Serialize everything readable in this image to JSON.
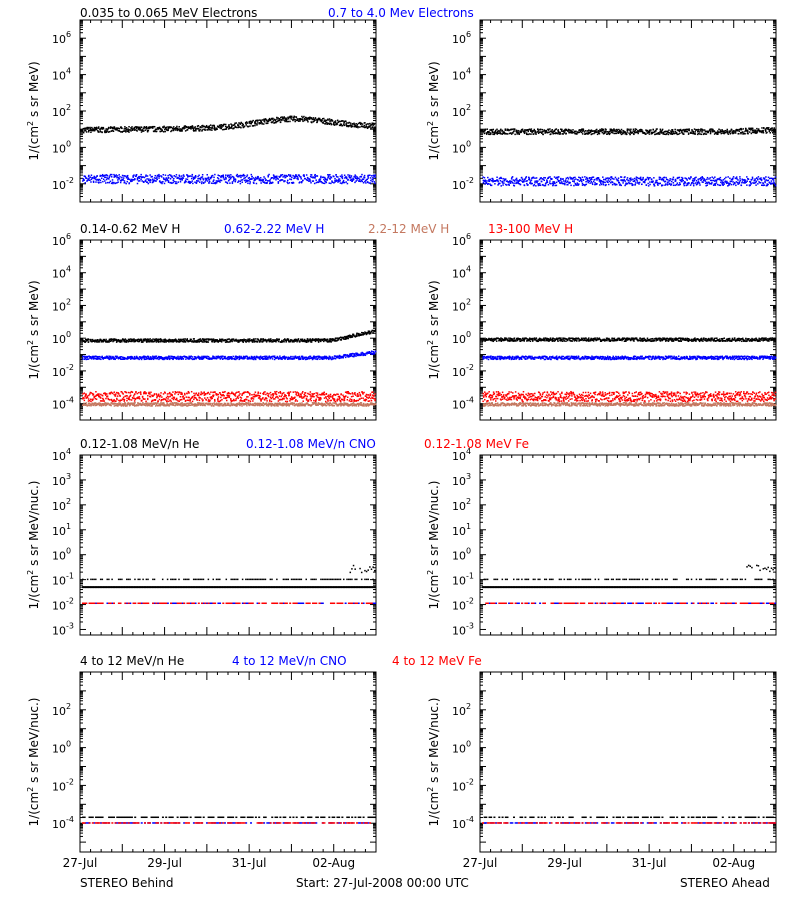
{
  "colors": {
    "black": "#000000",
    "blue": "#0000ff",
    "tan": "#c47860",
    "red": "#ff0000"
  },
  "footer": {
    "left": "STEREO Behind",
    "center": "Start: 27-Jul-2008 00:00 UTC",
    "right": "STEREO Ahead"
  },
  "x_ticks": [
    "27-Jul",
    "29-Jul",
    "31-Jul",
    "02-Aug"
  ],
  "rows": [
    {
      "ylabel": "1/(cm² s sr MeV)",
      "ylabel_parts": [
        "1/(cm",
        "2",
        " s sr MeV)"
      ],
      "legend": [
        {
          "text": "0.035 to 0.065 MeV Electrons",
          "color": "black"
        },
        {
          "text": "0.7 to 4.0 Mev Electrons",
          "color": "blue"
        }
      ],
      "y_ticks": [
        {
          "b": 6,
          "lab": "6"
        },
        {
          "b": 4,
          "lab": "4"
        },
        {
          "b": 2,
          "lab": "2"
        },
        {
          "b": 0,
          "lab": "0"
        },
        {
          "b": -2,
          "lab": "-2"
        }
      ]
    },
    {
      "ylabel": "1/(cm² s sr MeV)",
      "ylabel_parts": [
        "1/(cm",
        "2",
        " s sr MeV)"
      ],
      "legend": [
        {
          "text": "0.14-0.62 MeV H",
          "color": "black"
        },
        {
          "text": "0.62-2.22 MeV H",
          "color": "blue"
        },
        {
          "text": "2.2-12 MeV H",
          "color": "tan"
        },
        {
          "text": "13-100 MeV H",
          "color": "red"
        }
      ],
      "y_ticks": [
        {
          "b": 6,
          "lab": "6"
        },
        {
          "b": 4,
          "lab": "4"
        },
        {
          "b": 2,
          "lab": "2"
        },
        {
          "b": 0,
          "lab": "0"
        },
        {
          "b": -2,
          "lab": "-2"
        },
        {
          "b": -4,
          "lab": "-4"
        }
      ]
    },
    {
      "ylabel": "1/(cm² s sr MeV/nuc.)",
      "ylabel_parts": [
        "1/(cm",
        "2",
        " s sr MeV/nuc.)"
      ],
      "legend": [
        {
          "text": "0.12-1.08 MeV/n He",
          "color": "black"
        },
        {
          "text": "0.12-1.08 MeV/n CNO",
          "color": "blue"
        },
        {
          "text": "0.12-1.08 MeV Fe",
          "color": "red"
        }
      ],
      "y_ticks": [
        {
          "b": 4,
          "lab": "4"
        },
        {
          "b": 3,
          "lab": "3"
        },
        {
          "b": 2,
          "lab": "2"
        },
        {
          "b": 1,
          "lab": "1"
        },
        {
          "b": 0,
          "lab": "0"
        },
        {
          "b": -1,
          "lab": "-1"
        },
        {
          "b": -2,
          "lab": "-2"
        },
        {
          "b": -3,
          "lab": "-3"
        }
      ]
    },
    {
      "ylabel": "1/(cm² s sr MeV/nuc.)",
      "ylabel_parts": [
        "1/(cm",
        "2",
        " s sr MeV/nuc.)"
      ],
      "legend": [
        {
          "text": "4 to 12 MeV/n He",
          "color": "black"
        },
        {
          "text": "4 to 12 MeV/n CNO",
          "color": "blue"
        },
        {
          "text": "4 to 12 MeV Fe",
          "color": "red"
        }
      ],
      "y_ticks": [
        {
          "b": 2,
          "lab": "2"
        },
        {
          "b": 0,
          "lab": "0"
        },
        {
          "b": -2,
          "lab": "-2"
        },
        {
          "b": -4,
          "lab": "-4"
        }
      ]
    }
  ],
  "chart_data": [
    {
      "type": "scatter",
      "panel": "behind",
      "row": 1,
      "ylog": true,
      "ylim": [
        0.001,
        10000000
      ],
      "xlim": [
        "27-Jul",
        "03-Aug"
      ],
      "series": [
        {
          "name": "0.035 to 0.065 MeV Electrons",
          "color": "black",
          "level_start": 10,
          "level_peak": 30,
          "level_end": 15,
          "spread": 0.15
        },
        {
          "name": "0.7 to 4.0 Mev Electrons",
          "color": "blue",
          "level": 0.02,
          "spread": 0.25
        }
      ]
    },
    {
      "type": "scatter",
      "panel": "ahead",
      "row": 1,
      "ylog": true,
      "ylim": [
        0.001,
        10000000
      ],
      "xlim": [
        "27-Jul",
        "03-Aug"
      ],
      "series": [
        {
          "name": "0.035 to 0.065 MeV Electrons",
          "color": "black",
          "level_start": 8,
          "level_end": 10,
          "spread": 0.15
        },
        {
          "name": "0.7 to 4.0 Mev Electrons",
          "color": "blue",
          "level": 0.015,
          "spread": 0.25
        }
      ]
    },
    {
      "type": "scatter",
      "panel": "behind",
      "row": 2,
      "ylog": true,
      "ylim": [
        1e-05,
        1000000
      ],
      "xlim": [
        "27-Jul",
        "03-Aug"
      ],
      "series": [
        {
          "name": "0.14-0.62 MeV H",
          "color": "black",
          "level_start": 0.8,
          "level_end": 3,
          "spread": 0.1
        },
        {
          "name": "0.62-2.22 MeV H",
          "color": "blue",
          "level_start": 0.07,
          "level_end": 0.15,
          "spread": 0.1
        },
        {
          "name": "2.2-12 MeV H",
          "color": "tan",
          "level": 0.0001,
          "spread": 0.1
        },
        {
          "name": "13-100 MeV H",
          "color": "red",
          "level": 0.0003,
          "spread": 0.3
        }
      ]
    },
    {
      "type": "scatter",
      "panel": "ahead",
      "row": 2,
      "ylog": true,
      "ylim": [
        1e-05,
        1000000
      ],
      "xlim": [
        "27-Jul",
        "03-Aug"
      ],
      "series": [
        {
          "name": "0.14-0.62 MeV H",
          "color": "black",
          "level": 0.9,
          "spread": 0.1
        },
        {
          "name": "0.62-2.22 MeV H",
          "color": "blue",
          "level": 0.07,
          "spread": 0.1
        },
        {
          "name": "2.2-12 MeV H",
          "color": "tan",
          "level": 0.0001,
          "spread": 0.1
        },
        {
          "name": "13-100 MeV H",
          "color": "red",
          "level": 0.0003,
          "spread": 0.3
        }
      ]
    },
    {
      "type": "scatter",
      "panel": "behind",
      "row": 3,
      "ylog": true,
      "ylim": [
        0.0006,
        10000
      ],
      "xlim": [
        "27-Jul",
        "03-Aug"
      ],
      "series": [
        {
          "name": "0.12-1.08 MeV/n He",
          "color": "black",
          "level": 0.1,
          "baseline": 0.05
        },
        {
          "name": "0.12-1.08 MeV/n CNO",
          "color": "blue",
          "level": 0.011
        },
        {
          "name": "0.12-1.08 MeV Fe",
          "color": "red",
          "level": 0.011
        }
      ]
    },
    {
      "type": "scatter",
      "panel": "ahead",
      "row": 3,
      "ylog": true,
      "ylim": [
        0.0006,
        10000
      ],
      "xlim": [
        "27-Jul",
        "03-Aug"
      ],
      "series": [
        {
          "name": "0.12-1.08 MeV/n He",
          "color": "black",
          "level": 0.1,
          "baseline": 0.05
        },
        {
          "name": "0.12-1.08 MeV/n CNO",
          "color": "blue",
          "level": 0.011
        },
        {
          "name": "0.12-1.08 MeV Fe",
          "color": "red",
          "level": 0.011
        }
      ]
    },
    {
      "type": "scatter",
      "panel": "behind",
      "row": 4,
      "ylog": true,
      "ylim": [
        3e-06,
        10000
      ],
      "xlim": [
        "27-Jul",
        "03-Aug"
      ],
      "series": [
        {
          "name": "4 to 12 MeV/n He",
          "color": "black",
          "level": 0.0002
        },
        {
          "name": "4 to 12 MeV/n CNO",
          "color": "blue",
          "level": 0.0001
        },
        {
          "name": "4 to 12 MeV Fe",
          "color": "red",
          "level": 0.0001
        }
      ]
    },
    {
      "type": "scatter",
      "panel": "ahead",
      "row": 4,
      "ylog": true,
      "ylim": [
        3e-06,
        10000
      ],
      "xlim": [
        "27-Jul",
        "03-Aug"
      ],
      "series": [
        {
          "name": "4 to 12 MeV/n He",
          "color": "black",
          "level": 0.0002
        },
        {
          "name": "4 to 12 MeV/n CNO",
          "color": "blue",
          "level": 0.0001
        },
        {
          "name": "4 to 12 MeV Fe",
          "color": "red",
          "level": 0.0001
        }
      ]
    }
  ]
}
